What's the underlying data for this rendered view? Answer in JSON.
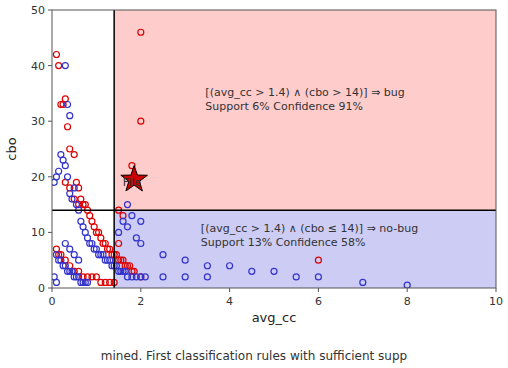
{
  "chart_data": {
    "type": "scatter",
    "xlabel": "avg_cc",
    "ylabel": "cbo",
    "xlim": [
      0,
      10
    ],
    "ylim": [
      0,
      50
    ],
    "xticks": [
      0,
      2,
      4,
      6,
      8,
      10
    ],
    "yticks": [
      0,
      10,
      20,
      30,
      40,
      50
    ],
    "grid": false,
    "regions": [
      {
        "x": [
          1.4,
          10
        ],
        "y": [
          14,
          50
        ],
        "color": "#ffaaaa"
      },
      {
        "x": [
          1.4,
          10
        ],
        "y": [
          0,
          14
        ],
        "color": "#aaaaee"
      }
    ],
    "vlines": [
      1.4
    ],
    "hlines": [
      14
    ],
    "series": [
      {
        "color": "#dd0000",
        "marker": "circle",
        "x": [
          0.1,
          0.15,
          0.2,
          0.25,
          0.3,
          0.35,
          0.4,
          0.5,
          0.55,
          0.6,
          0.65,
          0.7,
          0.75,
          0.8,
          0.85,
          0.9,
          0.95,
          1.0,
          1.05,
          1.1,
          1.15,
          1.2,
          1.25,
          1.3,
          1.35,
          1.4,
          1.45,
          1.5,
          1.55,
          1.6,
          1.65,
          1.7,
          1.75,
          1.8,
          1.85,
          0.3,
          0.4,
          0.5,
          0.6,
          0.2,
          0.3,
          0.4,
          0.5,
          0.6,
          0.7,
          0.8,
          0.9,
          1.0,
          1.1,
          1.2,
          1.3,
          1.4,
          0.1,
          0.15,
          1.5,
          1.6,
          1.8,
          2.0,
          2.0,
          1.5,
          2.0,
          6.0
        ],
        "values": [
          42,
          40,
          33,
          33,
          34,
          29,
          25,
          24,
          19,
          18,
          16,
          15,
          15,
          14,
          13,
          12,
          11,
          10,
          10,
          9,
          8,
          8,
          7,
          7,
          6,
          6,
          6,
          5,
          5,
          5,
          4,
          4,
          4,
          3,
          3,
          19,
          18,
          16,
          15,
          6,
          5,
          4,
          3,
          3,
          2,
          2,
          2,
          2,
          1,
          1,
          1,
          1,
          7,
          6,
          14,
          13,
          22,
          30,
          46,
          8,
          2,
          5
        ]
      },
      {
        "color": "#3333cc",
        "marker": "circle",
        "x": [
          0.05,
          0.1,
          0.15,
          0.2,
          0.25,
          0.3,
          0.35,
          0.4,
          0.45,
          0.5,
          0.55,
          0.6,
          0.65,
          0.7,
          0.75,
          0.8,
          0.85,
          0.9,
          0.95,
          1.0,
          1.05,
          1.1,
          1.15,
          1.2,
          1.25,
          1.3,
          1.35,
          1.4,
          1.45,
          1.5,
          1.55,
          1.6,
          1.65,
          1.7,
          1.8,
          1.9,
          2.0,
          2.1,
          0.1,
          0.15,
          0.2,
          0.25,
          0.3,
          0.35,
          0.4,
          0.45,
          0.5,
          0.55,
          0.6,
          0.65,
          0.7,
          0.75,
          0.8,
          0.05,
          0.1,
          1.5,
          1.6,
          1.7,
          1.8,
          1.9,
          2.0,
          2.5,
          3.0,
          3.5,
          4.0,
          4.5,
          5.0,
          5.5,
          6.0,
          7.0,
          8.0,
          2.0,
          2.5,
          3.0,
          3.5,
          0.3,
          0.35,
          0.4,
          1.7,
          0.3,
          0.4,
          0.5,
          0.6
        ],
        "values": [
          19,
          20,
          21,
          24,
          23,
          22,
          20,
          17,
          16,
          18,
          15,
          14,
          12,
          11,
          10,
          9,
          8,
          8,
          7,
          7,
          6,
          6,
          6,
          5,
          5,
          5,
          4,
          4,
          4,
          3,
          3,
          3,
          3,
          2,
          2,
          2,
          2,
          2,
          6,
          5,
          5,
          4,
          4,
          3,
          3,
          3,
          2,
          2,
          2,
          1,
          1,
          1,
          1,
          2,
          1,
          10,
          12,
          11,
          13,
          9,
          8,
          6,
          5,
          4,
          4,
          3,
          3,
          2,
          2,
          1,
          0.5,
          12,
          2,
          2,
          2,
          40,
          33,
          31,
          15,
          8,
          7,
          6,
          5
        ]
      },
      {
        "color": "#cc0000",
        "marker": "star",
        "x": [
          1.85
        ],
        "values": [
          19.5
        ]
      }
    ],
    "annotations": [
      {
        "text": "File",
        "x": 1.8,
        "y": 19
      },
      {
        "text": "[(avg_cc > 1.4) ∧ (cbo > 14)] ⇒ bug\nSupport 6% Confidence 91%",
        "x": 5.7,
        "y": 34
      },
      {
        "text": "[(avg_cc > 1.4) ∧ (cbo ≤ 14)] ⇒ no-bug\nSupport 13% Confidence 58%",
        "x": 5.8,
        "y": 9.5
      },
      {
        "text": "mined. First classification rules with sufficient supp"
      }
    ]
  }
}
